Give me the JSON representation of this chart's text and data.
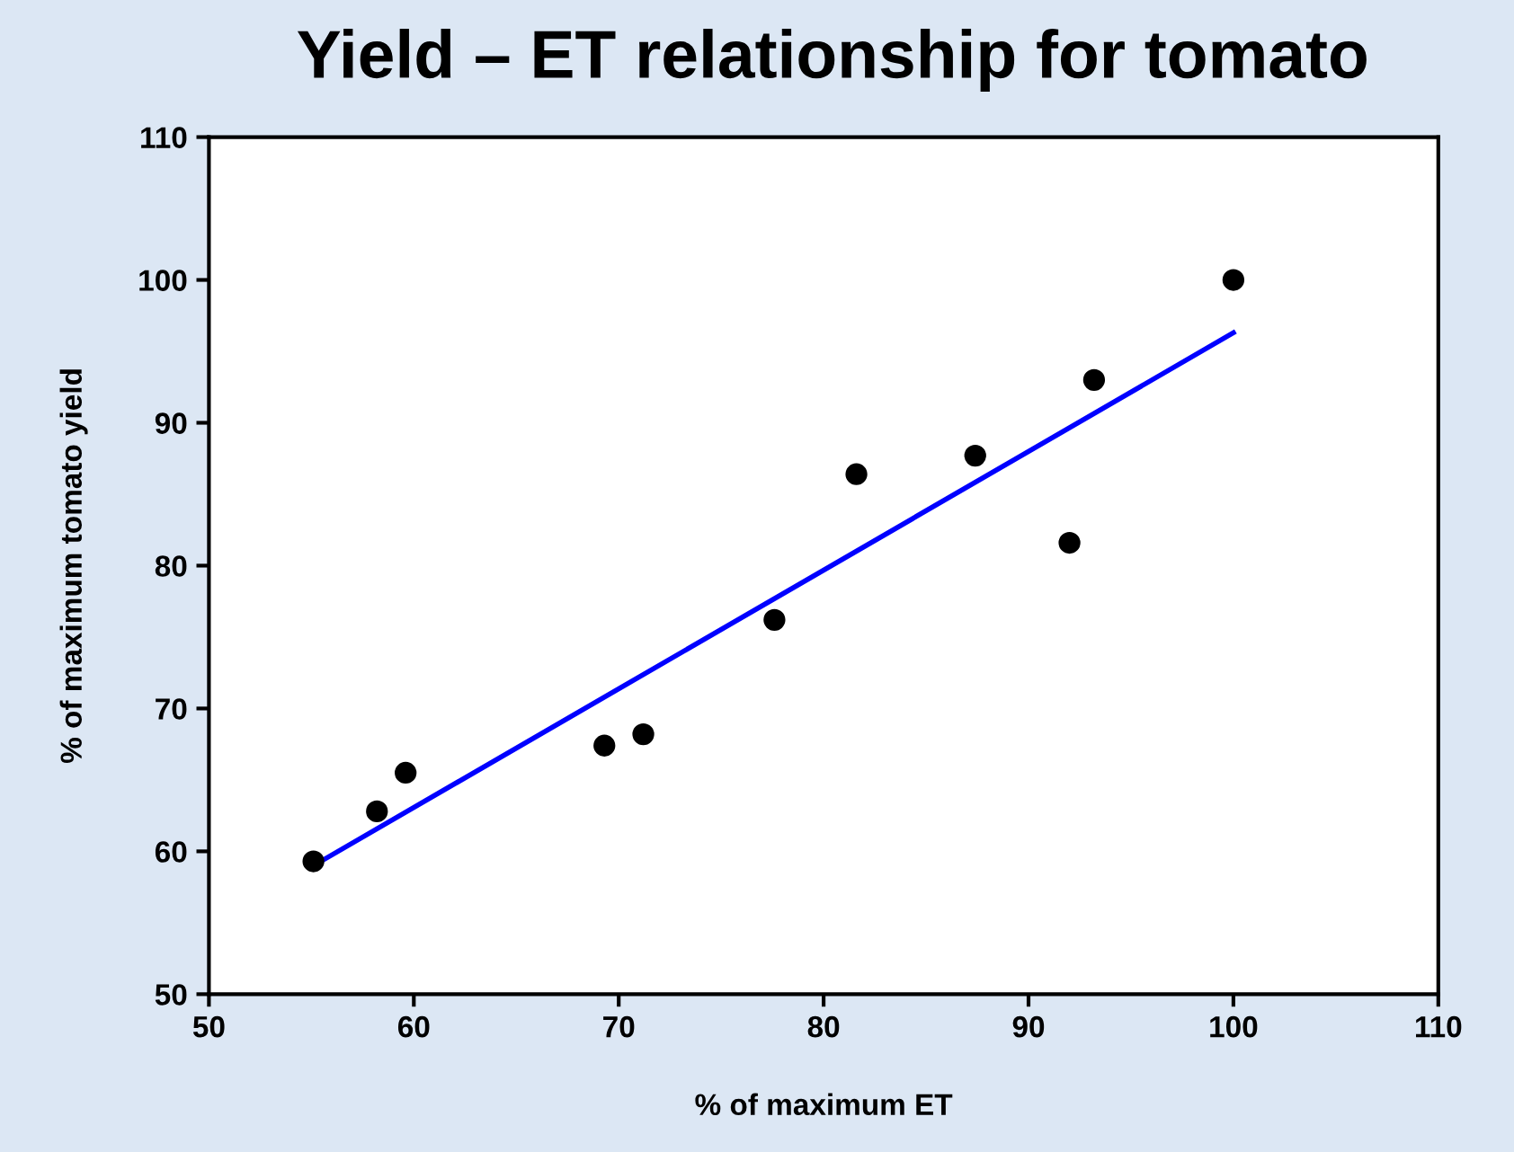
{
  "chart_data": {
    "type": "scatter",
    "title": "Yield – ET relationship for tomato",
    "xlabel": "% of maximum ET",
    "ylabel": "% of maximum tomato yield",
    "series": [
      {
        "color": "#000000",
        "marker": "circle",
        "x": [
          55.1,
          58.2,
          59.6,
          69.3,
          71.2,
          77.6,
          81.6,
          87.4,
          92.0,
          93.2,
          100.0
        ],
        "values": [
          59.3,
          62.8,
          65.5,
          67.4,
          68.2,
          76.2,
          86.4,
          87.7,
          81.6,
          93.0,
          100.0
        ]
      },
      {
        "type": "line",
        "color": "#0000ff",
        "line_style": "solid",
        "x": [
          55.1,
          100.0
        ],
        "values": [
          59.0,
          96.3
        ]
      }
    ],
    "xlim": [
      50,
      110
    ],
    "ylim": [
      50,
      110
    ],
    "xticks": [
      50,
      60,
      70,
      80,
      90,
      100,
      110
    ],
    "yticks": [
      50,
      60,
      70,
      80,
      90,
      100,
      110
    ],
    "grid": false,
    "legend": false
  }
}
